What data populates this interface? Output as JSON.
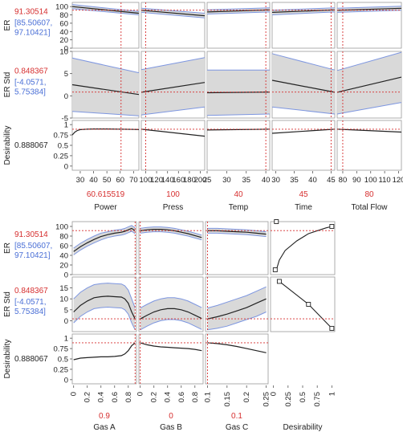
{
  "colors": {
    "red": "#d62f2f",
    "blue": "#4a6fd6",
    "curve": "#222222",
    "band_fill": "#d9d9d9",
    "band_edge": "#7d96e0",
    "frame": "#9a9a9a"
  },
  "chart_data": [
    {
      "type": "line",
      "title": "",
      "responses": [
        {
          "name": "ER",
          "value": "91.30514",
          "ci_low": "[85.50607,",
          "ci_high": "97.10421]",
          "ylim": [
            0,
            110
          ],
          "yticks": [
            "0",
            "20",
            "40",
            "60",
            "80",
            "100"
          ]
        },
        {
          "name": "ER Std",
          "value": "0.848367",
          "ci_low": "[-4.0571,",
          "ci_high": "5.75384]",
          "ylim": [
            -5,
            10
          ],
          "yticks": [
            "-5",
            "0",
            "5",
            "10"
          ]
        },
        {
          "name": "Desirability",
          "value": "0.888067",
          "ci_low": "",
          "ci_high": "",
          "ylim": [
            -0.1,
            1.1
          ],
          "yticks": [
            "0",
            "0.25",
            "0.5",
            "0.75",
            "1"
          ]
        }
      ],
      "factors": [
        {
          "name": "Power",
          "current": "60.615519",
          "current_x": 60.615519,
          "xlim": [
            24,
            74
          ],
          "xticks": [
            "30",
            "40",
            "50",
            "60",
            "70"
          ],
          "x": [
            24,
            74
          ],
          "series": [
            {
              "mean": [
                100,
                84
              ],
              "lo": [
                95,
                80
              ],
              "hi": [
                105,
                88
              ]
            },
            {
              "mean": [
                2.5,
                0.3
              ],
              "lo": [
                -3.5,
                -4.5
              ],
              "hi": [
                8.5,
                5.2
              ]
            },
            {
              "x": [
                24,
                26,
                28,
                30,
                35,
                40,
                50,
                60,
                70,
                74
              ],
              "mean": [
                0.75,
                0.82,
                0.86,
                0.88,
                0.89,
                0.895,
                0.895,
                0.89,
                0.885,
                0.88
              ]
            }
          ]
        },
        {
          "name": "Press",
          "current": "100",
          "current_x": 100,
          "xlim": [
            92,
            208
          ],
          "xticks": [
            "100",
            "120",
            "140",
            "160",
            "180",
            "200"
          ],
          "x": [
            92,
            208
          ],
          "series": [
            {
              "mean": [
                91,
                78
              ],
              "lo": [
                86,
                73
              ],
              "hi": [
                96,
                84
              ]
            },
            {
              "mean": [
                0.8,
                3.0
              ],
              "lo": [
                -4.3,
                -2.5
              ],
              "hi": [
                5.9,
                8.6
              ]
            },
            {
              "mean": [
                0.89,
                0.72
              ]
            }
          ]
        },
        {
          "name": "Temp",
          "current": "40",
          "current_x": 40,
          "xlim": [
            25,
            41
          ],
          "xticks": [
            "25",
            "30",
            "35",
            "40"
          ],
          "x": [
            25,
            41
          ],
          "series": [
            {
              "mean": [
                87,
                92
              ],
              "lo": [
                82,
                87
              ],
              "hi": [
                92,
                97
              ]
            },
            {
              "mean": [
                0.7,
                0.85
              ],
              "lo": [
                -4.4,
                -4.1
              ],
              "hi": [
                5.8,
                5.8
              ]
            },
            {
              "mean": [
                0.87,
                0.89
              ]
            }
          ]
        },
        {
          "name": "Time",
          "current": "45",
          "current_x": 45,
          "xlim": [
            29,
            46
          ],
          "xticks": [
            "30",
            "35",
            "40",
            "45"
          ],
          "x": [
            29,
            46
          ],
          "series": [
            {
              "mean": [
                86,
                92
              ],
              "lo": [
                80,
                87
              ],
              "hi": [
                91,
                97
              ]
            },
            {
              "mean": [
                3.5,
                0.8
              ],
              "lo": [
                -2.5,
                -4.1
              ],
              "hi": [
                9.5,
                5.8
              ]
            },
            {
              "mean": [
                0.79,
                0.89
              ]
            }
          ]
        },
        {
          "name": "Total Flow",
          "current": "80",
          "current_x": 80,
          "xlim": [
            76,
            122
          ],
          "xticks": [
            "80",
            "90",
            "100",
            "110",
            "120"
          ],
          "x": [
            76,
            122
          ],
          "series": [
            {
              "mean": [
                91,
                96
              ],
              "lo": [
                86,
                91
              ],
              "hi": [
                96,
                101
              ]
            },
            {
              "mean": [
                0.8,
                4.2
              ],
              "lo": [
                -4.1,
                -1.5
              ],
              "hi": [
                5.7,
                9.8
              ]
            },
            {
              "mean": [
                0.89,
                0.82
              ]
            }
          ]
        }
      ]
    },
    {
      "type": "line",
      "title": "",
      "responses": [
        {
          "name": "ER",
          "value": "91.30514",
          "ci_low": "[85.50607,",
          "ci_high": "97.10421]",
          "ylim": [
            0,
            110
          ],
          "yticks": [
            "0",
            "20",
            "40",
            "60",
            "80",
            "100"
          ]
        },
        {
          "name": "ER Std",
          "value": "0.848367",
          "ci_low": "[-4.0571,",
          "ci_high": "5.75384]",
          "ylim": [
            -5,
            20
          ],
          "yticks": [
            "0",
            "5",
            "10",
            "15"
          ]
        },
        {
          "name": "Desirability",
          "value": "0.888067",
          "ci_low": "",
          "ci_high": "",
          "ylim": [
            -0.1,
            1.1
          ],
          "yticks": [
            "0",
            "0.25",
            "0.5",
            "0.75",
            "1"
          ]
        }
      ],
      "factors": [
        {
          "name": "Gas A",
          "current": "0.9",
          "current_x": 0.9,
          "xlim": [
            -0.02,
            0.92
          ],
          "xticks": [
            "0",
            "0.2",
            "0.4",
            "0.6",
            "0.8"
          ],
          "x": [
            0,
            0.1,
            0.2,
            0.3,
            0.4,
            0.5,
            0.6,
            0.7,
            0.75,
            0.8,
            0.85,
            0.9
          ],
          "series": [
            {
              "mean": [
                48,
                58,
                66,
                73,
                79,
                83,
                86,
                88,
                90,
                93,
                96,
                91
              ],
              "lo": [
                41,
                51,
                59,
                66,
                72,
                77,
                80,
                82,
                84,
                87,
                90,
                85
              ],
              "hi": [
                55,
                65,
                73,
                80,
                86,
                89,
                92,
                94,
                96,
                99,
                102,
                97
              ]
            },
            {
              "mean": [
                4,
                7,
                9,
                10.5,
                11,
                11.2,
                11,
                10.8,
                10,
                8,
                4,
                0.8
              ],
              "lo": [
                -1,
                2,
                4,
                5.5,
                6,
                6.2,
                6,
                5.8,
                5,
                3,
                -1,
                -4.2
              ],
              "hi": [
                10,
                13,
                15,
                16.5,
                17,
                17.2,
                17,
                16.8,
                16,
                14,
                10,
                5.8
              ]
            },
            {
              "mean": [
                0.48,
                0.52,
                0.53,
                0.54,
                0.55,
                0.55,
                0.56,
                0.58,
                0.62,
                0.7,
                0.82,
                0.89
              ]
            }
          ]
        },
        {
          "name": "Gas B",
          "current": "0",
          "current_x": 0,
          "xlim": [
            -0.02,
            0.92
          ],
          "xticks": [
            "0",
            "0.2",
            "0.4",
            "0.6",
            "0.8"
          ],
          "x": [
            0,
            0.1,
            0.2,
            0.3,
            0.4,
            0.5,
            0.6,
            0.7,
            0.8,
            0.9
          ],
          "series": [
            {
              "mean": [
                91,
                93,
                94,
                94,
                93,
                91,
                88,
                85,
                81,
                77
              ],
              "lo": [
                86,
                88,
                89,
                89,
                88,
                86,
                83,
                80,
                76,
                72
              ],
              "hi": [
                96,
                98,
                99,
                99,
                98,
                96,
                93,
                90,
                86,
                82
              ]
            },
            {
              "mean": [
                0.8,
                2.5,
                4,
                5,
                5.5,
                5.5,
                5,
                4,
                2.5,
                1
              ],
              "lo": [
                -4.2,
                -2.5,
                -1,
                0,
                0.5,
                0.5,
                0,
                -1,
                -2.5,
                -4
              ],
              "hi": [
                5.8,
                7.5,
                9,
                10,
                10.5,
                10.5,
                10,
                9,
                7.5,
                6
              ]
            },
            {
              "mean": [
                0.89,
                0.84,
                0.81,
                0.79,
                0.78,
                0.77,
                0.76,
                0.75,
                0.73,
                0.7
              ]
            }
          ]
        },
        {
          "name": "Gas C",
          "current": "0.1",
          "current_x": 0.1,
          "xlim": [
            0.095,
            0.255
          ],
          "xticks": [
            "0.1",
            "0.15",
            "0.2",
            "0.25"
          ],
          "x": [
            0.1,
            0.125,
            0.15,
            0.175,
            0.2,
            0.225,
            0.25
          ],
          "series": [
            {
              "mean": [
                91,
                91,
                90,
                89,
                88,
                86,
                84
              ],
              "lo": [
                86,
                86,
                85,
                84,
                83,
                81,
                79
              ],
              "hi": [
                96,
                96,
                95,
                94,
                93,
                91,
                89
              ]
            },
            {
              "mean": [
                0.8,
                1.8,
                3,
                4.5,
                6,
                8,
                10
              ],
              "lo": [
                -4.2,
                -3.5,
                -2.5,
                -1,
                0.5,
                2,
                4
              ],
              "hi": [
                5.8,
                7,
                8.5,
                10,
                11.5,
                13.5,
                15.5
              ]
            },
            {
              "mean": [
                0.89,
                0.87,
                0.84,
                0.8,
                0.75,
                0.7,
                0.65
              ]
            }
          ]
        }
      ],
      "desirability": {
        "name": "Desirability",
        "xlim": [
          -0.05,
          1.05
        ],
        "xticks": [
          "0",
          "0.25",
          "0.5",
          "0.75",
          "1"
        ],
        "er_fn": {
          "x": [
            0.05,
            0.1,
            0.2,
            0.4,
            0.6,
            0.8,
            0.9,
            1.0
          ],
          "y": [
            10,
            30,
            50,
            70,
            85,
            93,
            97,
            100
          ]
        },
        "er_handles": [
          {
            "x": 0.05,
            "y": 110
          },
          {
            "x": 0.03,
            "y": 10
          },
          {
            "x": 1.0,
            "y": 100
          }
        ],
        "std_fn": {
          "x": [
            0.1,
            0.6,
            1.0
          ],
          "y": [
            18,
            7.5,
            -3.5
          ]
        },
        "std_handles": [
          {
            "x": 0.1,
            "y": 18
          },
          {
            "x": 0.6,
            "y": 7.5
          },
          {
            "x": 1.0,
            "y": -3.5
          }
        ]
      }
    }
  ]
}
